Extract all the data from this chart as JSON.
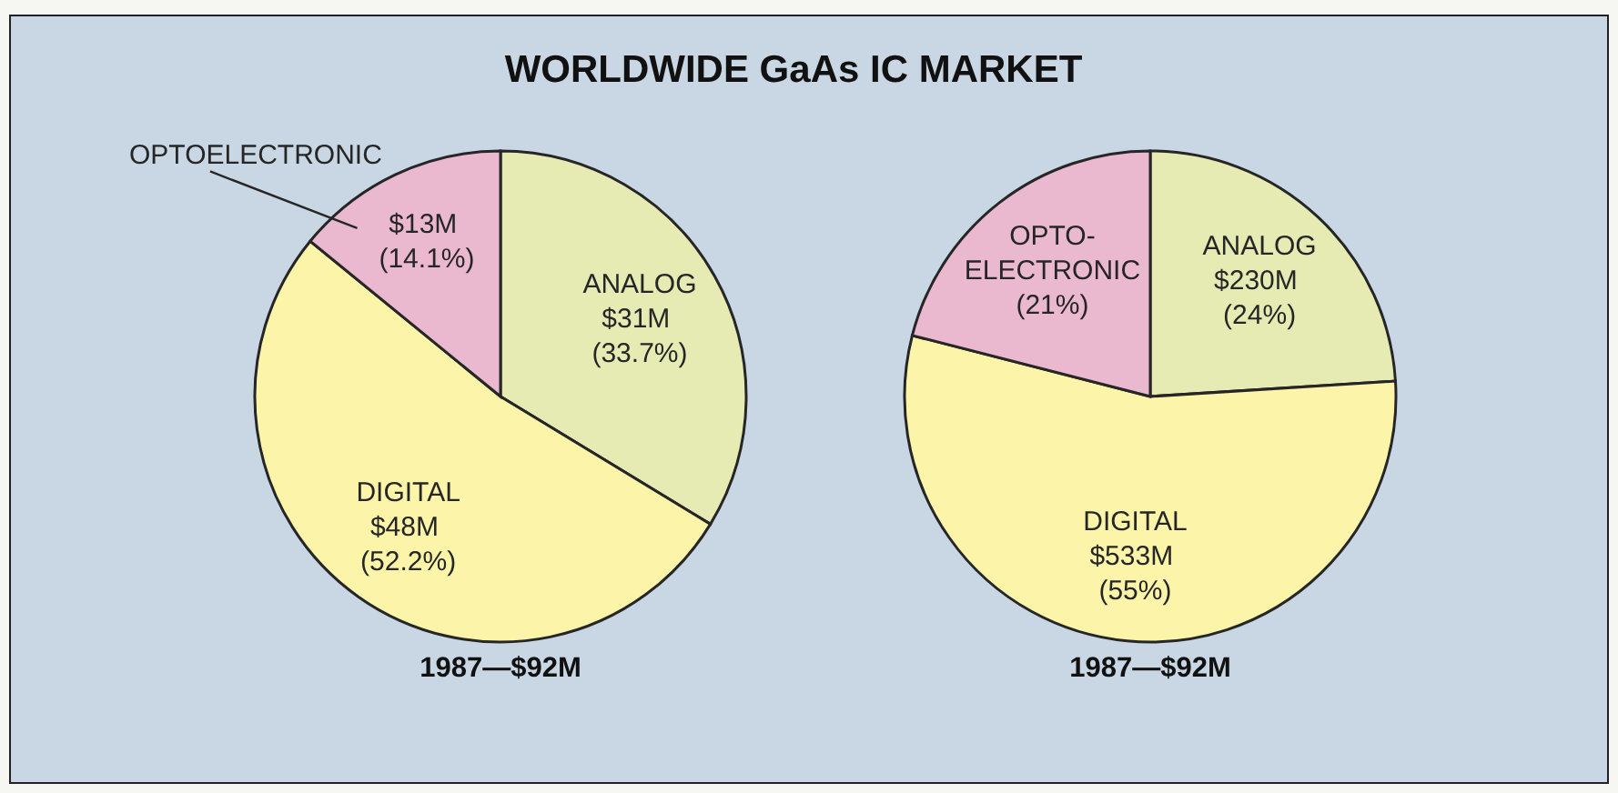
{
  "chart_data": [
    {
      "type": "pie",
      "title": "WORLDWIDE GaAs IC MARKET",
      "xlabel": "1987—$92M",
      "categories": [
        "ANALOG",
        "DIGITAL",
        "OPTOELECTRONIC"
      ],
      "values": [
        33.7,
        52.2,
        14.1
      ],
      "colors": [
        "#e6ebb4",
        "#fbf4a9",
        "#ebb9cf"
      ],
      "value_labels": [
        "$31M (33.7%)",
        "$48M (52.2%)",
        "$13M (14.1%)"
      ]
    },
    {
      "type": "pie",
      "xlabel": "1987—$92M",
      "categories": [
        "ANALOG",
        "DIGITAL",
        "OPTO-ELECTRONIC"
      ],
      "values": [
        24,
        55,
        21
      ],
      "colors": [
        "#e6ebb4",
        "#fbf4a9",
        "#ebb9cf"
      ],
      "value_labels": [
        "$230M (24%)",
        "$533M (55%)",
        "(21%)"
      ]
    }
  ]
}
